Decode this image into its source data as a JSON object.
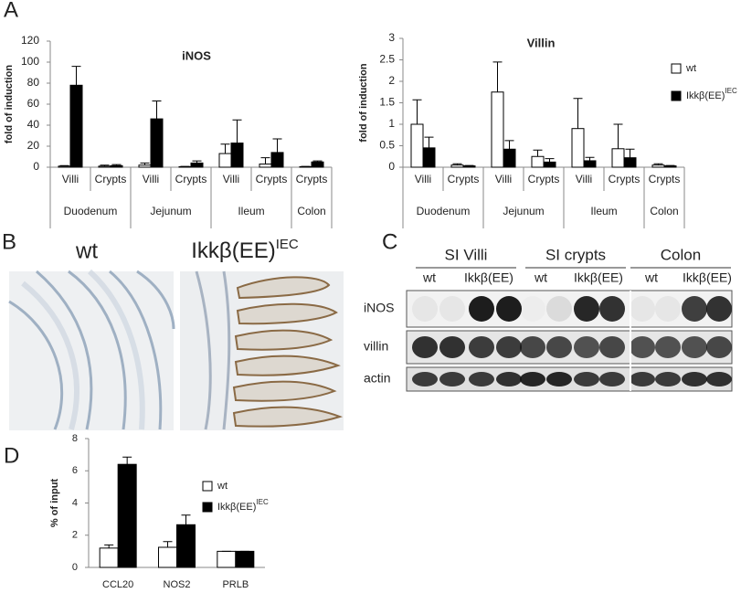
{
  "panel_labels": [
    "A",
    "B",
    "C",
    "D"
  ],
  "chart_data": [
    {
      "type": "bar",
      "title": "iNOS",
      "y_label": "fold of induction",
      "groups": [
        {
          "name": "Duodenum",
          "categories": [
            "Villi",
            "Crypts"
          ]
        },
        {
          "name": "Jejunum",
          "categories": [
            "Villi",
            "Crypts"
          ]
        },
        {
          "name": "Ileum",
          "categories": [
            "Villi",
            "Crypts"
          ]
        },
        {
          "name": "Colon",
          "categories": [
            "Crypts"
          ]
        }
      ],
      "series": [
        {
          "color": "#ffffff",
          "values": [
            1,
            1,
            2,
            0.5,
            13,
            3,
            0.5
          ],
          "errors": [
            0.5,
            1,
            2,
            0.3,
            9,
            6,
            0.3
          ]
        },
        {
          "color": "#000000",
          "values": [
            78,
            1.5,
            46,
            4,
            23,
            14,
            5
          ],
          "errors": [
            18,
            1,
            17,
            2,
            22,
            13,
            1
          ]
        }
      ],
      "ylim": [
        0,
        120
      ],
      "yticks": [
        0,
        20,
        40,
        60,
        80,
        100,
        120
      ]
    },
    {
      "type": "bar",
      "title": "Villin",
      "y_label": "fold of induction",
      "groups": [
        {
          "name": "Duodenum",
          "categories": [
            "Villi",
            "Crypts"
          ]
        },
        {
          "name": "Jejunum",
          "categories": [
            "Villi",
            "Crypts"
          ]
        },
        {
          "name": "Ileum",
          "categories": [
            "Villi",
            "Crypts"
          ]
        },
        {
          "name": "Colon",
          "categories": [
            "Crypts"
          ]
        }
      ],
      "series": [
        {
          "name": "wt",
          "color": "#ffffff",
          "values": [
            1.0,
            0.05,
            1.75,
            0.25,
            0.9,
            0.43,
            0.05
          ],
          "errors": [
            0.57,
            0.03,
            0.7,
            0.15,
            0.7,
            0.57,
            0.03
          ]
        },
        {
          "name": "Ikkβ(EE)",
          "name_superscript": "IEC",
          "color": "#000000",
          "values": [
            0.45,
            0.03,
            0.42,
            0.12,
            0.15,
            0.22,
            0.03
          ],
          "errors": [
            0.25,
            0.01,
            0.2,
            0.08,
            0.08,
            0.2,
            0.01
          ]
        }
      ],
      "ylim": [
        0,
        3
      ],
      "yticks": [
        0,
        0.5,
        1,
        1.5,
        2,
        2.5,
        3
      ]
    },
    {
      "type": "bar",
      "y_label": "% of input",
      "categories": [
        "CCL20",
        "NOS2",
        "PRLB"
      ],
      "series": [
        {
          "name": "wt",
          "color": "#ffffff",
          "values": [
            1.2,
            1.25,
            1.0
          ],
          "errors": [
            0.2,
            0.35,
            0
          ]
        },
        {
          "name": "Ikkβ(EE)",
          "name_superscript": "IEC",
          "color": "#000000",
          "values": [
            6.4,
            2.65,
            1.0
          ],
          "errors": [
            0.45,
            0.6,
            0
          ]
        }
      ],
      "ylim": [
        0,
        8
      ],
      "yticks": [
        0,
        2,
        4,
        6,
        8
      ]
    }
  ],
  "histology": {
    "labels": [
      {
        "text": "wt"
      },
      {
        "text": "Ikkβ(EE)",
        "superscript": "IEC"
      }
    ]
  },
  "blot": {
    "groups": [
      "SI Villi",
      "SI crypts",
      "Colon"
    ],
    "lanes": [
      "wt",
      "Ikkβ(EE)",
      "wt",
      "Ikkβ(EE)",
      "wt",
      "Ikkβ(EE)"
    ],
    "rows": [
      "iNOS",
      "villin",
      "actin"
    ]
  }
}
